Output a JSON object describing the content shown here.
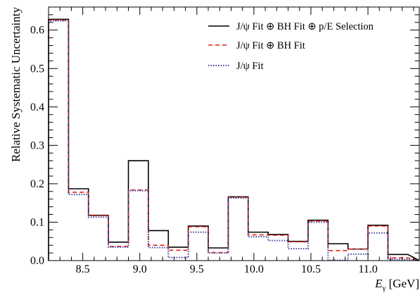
{
  "chart_data": {
    "type": "line",
    "step": true,
    "xlabel": "E_γ [GeV]",
    "xlabel_main": "E",
    "xlabel_sub": "γ",
    "xlabel_unit": " [GeV]",
    "ylabel": "Relative Systematic Uncertainty",
    "xlim": [
      8.2,
      11.45
    ],
    "ylim": [
      0,
      0.66
    ],
    "grid": false,
    "legend_position": "top-right",
    "x_ticks": [
      8.5,
      9.0,
      9.5,
      10.0,
      10.5,
      11.0
    ],
    "x_tick_labels": [
      "8.5",
      "9.0",
      "9.5",
      "10.0",
      "10.5",
      "11.0"
    ],
    "y_ticks": [
      0,
      0.1,
      0.2,
      0.3,
      0.4,
      0.5,
      0.6
    ],
    "y_tick_labels": [
      "0.0",
      "0.1",
      "0.2",
      "0.3",
      "0.4",
      "0.5",
      "0.6"
    ],
    "bin_edges": [
      8.2,
      8.375,
      8.55,
      8.725,
      8.9,
      9.075,
      9.25,
      9.425,
      9.6,
      9.775,
      9.95,
      10.125,
      10.3,
      10.475,
      10.65,
      10.825,
      11.0,
      11.175,
      11.35
    ],
    "bin_edges_end": 11.45,
    "series": [
      {
        "name": "J/ψ Fit ⊕ BH Fit ⊕ p/E Selection",
        "color": "#000000",
        "dash": "",
        "values": [
          0.628,
          0.187,
          0.118,
          0.048,
          0.26,
          0.078,
          0.035,
          0.09,
          0.033,
          0.166,
          0.074,
          0.068,
          0.05,
          0.105,
          0.044,
          0.03,
          0.092,
          0.016
        ]
      },
      {
        "name": "J/ψ Fit ⊕ BH Fit",
        "color": "#e8201c",
        "dash": "6,4",
        "values": [
          0.626,
          0.178,
          0.117,
          0.037,
          0.184,
          0.04,
          0.027,
          0.088,
          0.021,
          0.165,
          0.067,
          0.066,
          0.049,
          0.103,
          0.026,
          0.03,
          0.09,
          0.007
        ]
      },
      {
        "name": "J/ψ Fit",
        "color": "#3b3f9c",
        "dash": "1.5,2",
        "values": [
          0.624,
          0.172,
          0.113,
          0.035,
          0.182,
          0.034,
          0.008,
          0.074,
          0.02,
          0.163,
          0.062,
          0.052,
          0.031,
          0.1,
          0.001,
          0.017,
          0.072,
          0.003
        ]
      }
    ]
  }
}
